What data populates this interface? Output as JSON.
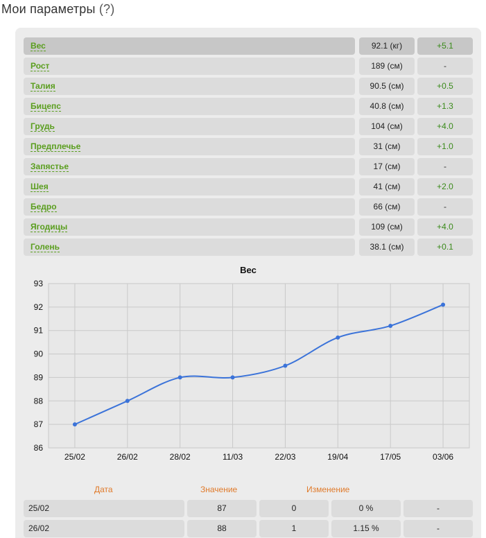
{
  "page": {
    "title": "Мои параметры",
    "help_label": "(?)"
  },
  "params": [
    {
      "name": "Вес",
      "value": "92.1 (кг)",
      "delta": "+5.1"
    },
    {
      "name": "Рост",
      "value": "189 (см)",
      "delta": "-"
    },
    {
      "name": "Талия",
      "value": "90.5 (см)",
      "delta": "+0.5"
    },
    {
      "name": "Бицепс",
      "value": "40.8 (см)",
      "delta": "+1.3"
    },
    {
      "name": "Грудь",
      "value": "104 (см)",
      "delta": "+4.0"
    },
    {
      "name": "Предплечье",
      "value": "31 (см)",
      "delta": "+1.0"
    },
    {
      "name": "Запястье",
      "value": "17 (см)",
      "delta": "-"
    },
    {
      "name": "Шея",
      "value": "41 (см)",
      "delta": "+2.0"
    },
    {
      "name": "Бедро",
      "value": "66 (см)",
      "delta": "-"
    },
    {
      "name": "Ягодицы",
      "value": "109 (см)",
      "delta": "+4.0"
    },
    {
      "name": "Голень",
      "value": "38.1 (см)",
      "delta": "+0.1"
    }
  ],
  "chart_data": {
    "type": "line",
    "title": "Вес",
    "categories": [
      "25/02",
      "26/02",
      "28/02",
      "11/03",
      "22/03",
      "19/04",
      "17/05",
      "03/06"
    ],
    "values": [
      87,
      88,
      89,
      89,
      89.5,
      90.7,
      91.2,
      92.1
    ],
    "yticks": [
      "86",
      "87",
      "88",
      "89",
      "90",
      "91",
      "92",
      "93"
    ],
    "ylim": [
      86,
      93
    ],
    "grid": true,
    "line_color": "#3b73d9"
  },
  "history": {
    "headers": {
      "date": "Дата",
      "value": "Значение",
      "change": "Изменение"
    },
    "rows": [
      {
        "date": "25/02",
        "value": "87",
        "change": "0",
        "percent": "0 %",
        "extra": "-"
      },
      {
        "date": "26/02",
        "value": "88",
        "change": "1",
        "percent": "1.15 %",
        "extra": "-"
      }
    ]
  }
}
